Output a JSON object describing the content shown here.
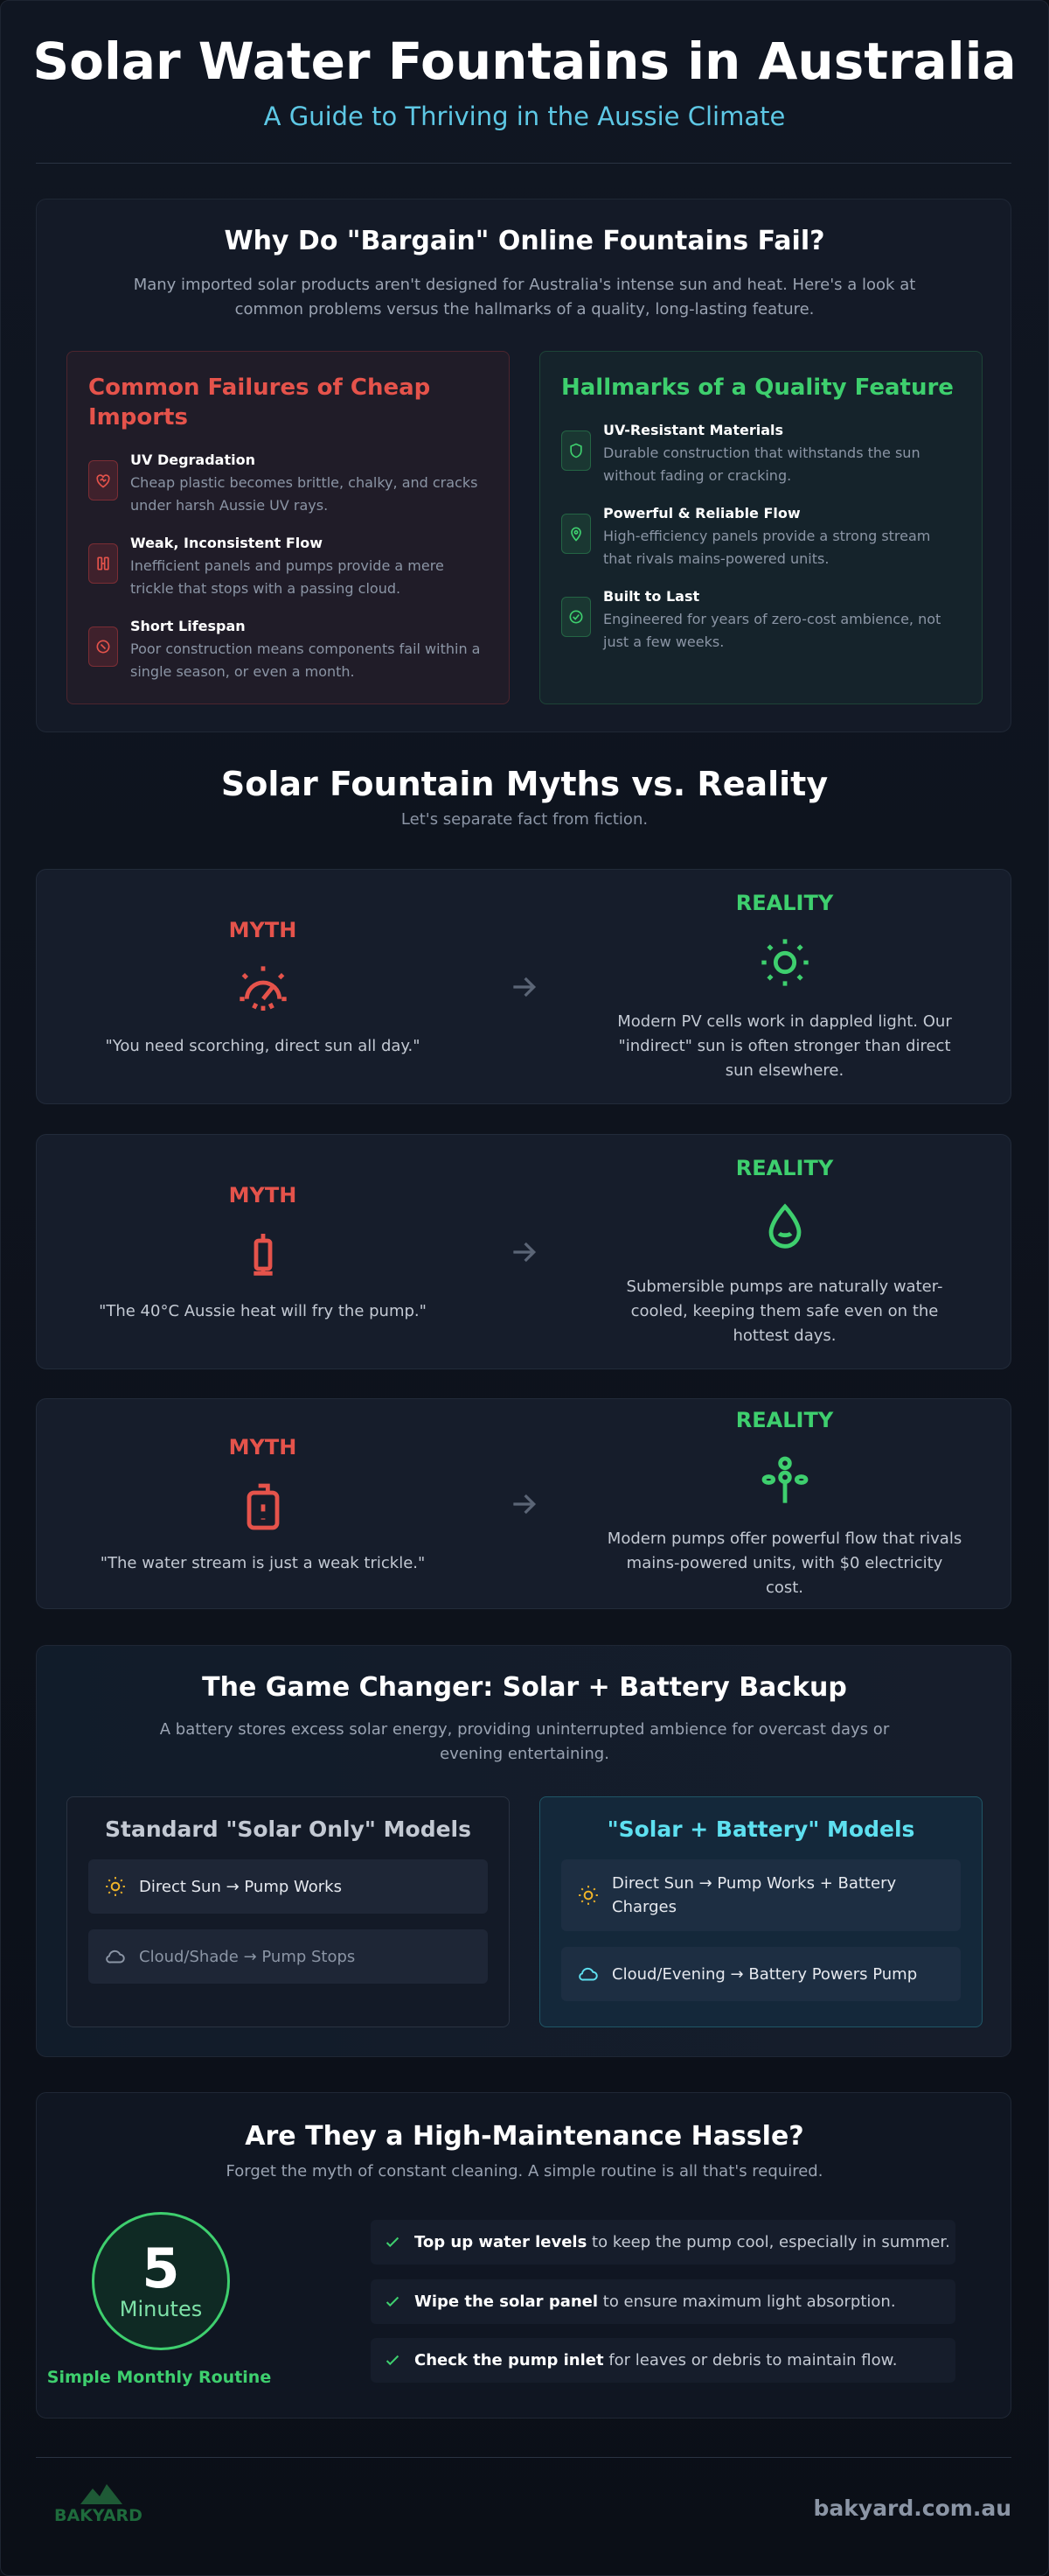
{
  "header": {
    "title": "Solar Water Fountains in Australia",
    "subtitle": "A Guide to Thriving in the Aussie Climate"
  },
  "why": {
    "title": "Why Do \"Bargain\" Online Fountains Fail?",
    "intro": "Many imported solar products aren't designed for Australia's intense sun and heat. Here's a look at common problems versus the hallmarks of a quality, long-lasting feature.",
    "failures": {
      "title": "Common Failures of Cheap Imports",
      "items": [
        {
          "title": "UV Degradation",
          "text": "Cheap plastic becomes brittle, chalky, and cracks under harsh Aussie UV rays."
        },
        {
          "title": "Weak, Inconsistent Flow",
          "text": "Inefficient panels and pumps provide a mere trickle that stops with a passing cloud."
        },
        {
          "title": "Short Lifespan",
          "text": "Poor construction means components fail within a single season, or even a month."
        }
      ]
    },
    "hallmarks": {
      "title": "Hallmarks of a Quality Feature",
      "items": [
        {
          "title": "UV-Resistant Materials",
          "text": "Durable construction that withstands the sun without fading or cracking."
        },
        {
          "title": "Powerful & Reliable Flow",
          "text": "High-efficiency panels provide a strong stream that rivals mains-powered units."
        },
        {
          "title": "Built to Last",
          "text": "Engineered for years of zero-cost ambience, not just a few weeks."
        }
      ]
    }
  },
  "myths": {
    "title": "Solar Fountain Myths vs. Reality",
    "subtitle": "Let's separate fact from fiction.",
    "cards": [
      {
        "myth_label": "MYTH",
        "myth": "\"You need scorching, direct sun all day.\"",
        "reality_label": "REALITY",
        "reality": "Modern PV cells work in dappled light. Our \"indirect\" sun is often stronger than direct sun elsewhere."
      },
      {
        "myth_label": "MYTH",
        "myth": "\"The 40°C Aussie heat will fry the pump.\"",
        "reality_label": "REALITY",
        "reality": "Submersible pumps are naturally water-cooled, keeping them safe even on the hottest days."
      },
      {
        "myth_label": "MYTH",
        "myth": "\"The water stream is just a weak trickle.\"",
        "reality_label": "REALITY",
        "reality": "Modern pumps offer powerful flow that rivals mains-powered units, with $0 electricity cost."
      }
    ]
  },
  "battery": {
    "title": "The Game Changer: Solar + Battery Backup",
    "intro": "A battery stores excess solar energy, providing uninterrupted ambience for overcast days or evening entertaining.",
    "standard": {
      "title": "Standard \"Solar Only\" Models",
      "rows": [
        "Direct Sun → Pump Works",
        "Cloud/Shade → Pump Stops"
      ]
    },
    "with_battery": {
      "title": "\"Solar + Battery\" Models",
      "rows": [
        "Direct Sun → Pump Works + Battery Charges",
        "Cloud/Evening → Battery Powers Pump"
      ]
    }
  },
  "maintenance": {
    "title": "Are They a High-Maintenance Hassle?",
    "subtitle": "Forget the myth of constant cleaning. A simple routine is all that's required.",
    "badge_number": 5,
    "badge_unit": "Minutes",
    "caption": "Simple Monthly Routine",
    "tasks": [
      {
        "bold": "Top up water levels",
        "text": " to keep the pump cool, especially in summer."
      },
      {
        "bold": "Wipe the solar panel",
        "text": " to ensure maximum light absorption."
      },
      {
        "bold": "Check the pump inlet",
        "text": " for leaves or debris to maintain flow."
      }
    ]
  },
  "footer": {
    "logo": "BAKYARD",
    "url": "bakyard.com.au"
  }
}
